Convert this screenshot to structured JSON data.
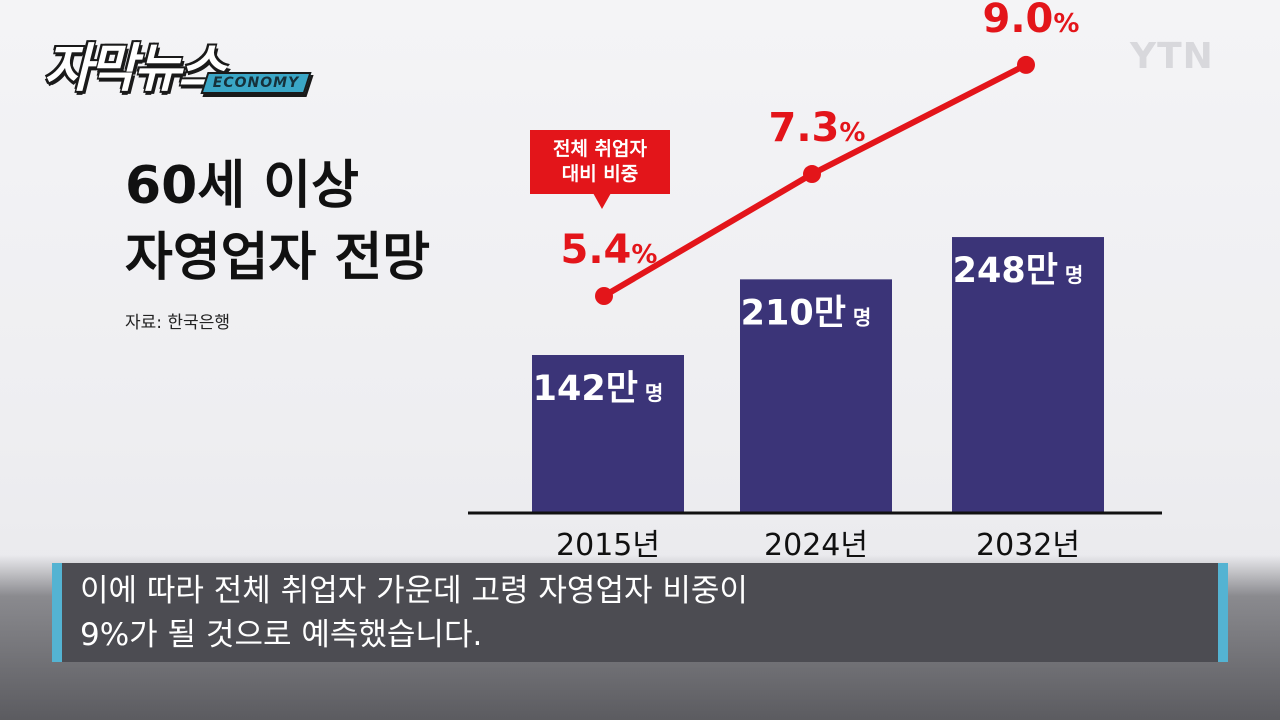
{
  "brand": {
    "logo_main": "자막뉴스",
    "logo_tag": "ECONOMY",
    "channel": "YTN"
  },
  "title_lines": [
    "60세 이상",
    "자영업자 전망"
  ],
  "source": "자료: 한국은행",
  "callout": {
    "line1": "전체 취업자",
    "line2": "대비 비중"
  },
  "chart_data": {
    "type": "bar",
    "categories": [
      "2015년",
      "2024년",
      "2032년"
    ],
    "series": [
      {
        "values": [
          142,
          210,
          248
        ],
        "labels": [
          "142만",
          "210만",
          "248만"
        ],
        "unit": "명",
        "color": "#3b3478"
      },
      {
        "values": [
          5.4,
          7.3,
          9.0
        ],
        "labels": [
          "5.4",
          "7.3",
          "9.0"
        ],
        "unit": "%",
        "color": "#e3151a"
      }
    ]
  },
  "subtitle": {
    "line1": "이에 따라 전체 취업자 가운데 고령 자영업자 비중이",
    "line2": "9%가 될 것으로 예측했습니다."
  }
}
